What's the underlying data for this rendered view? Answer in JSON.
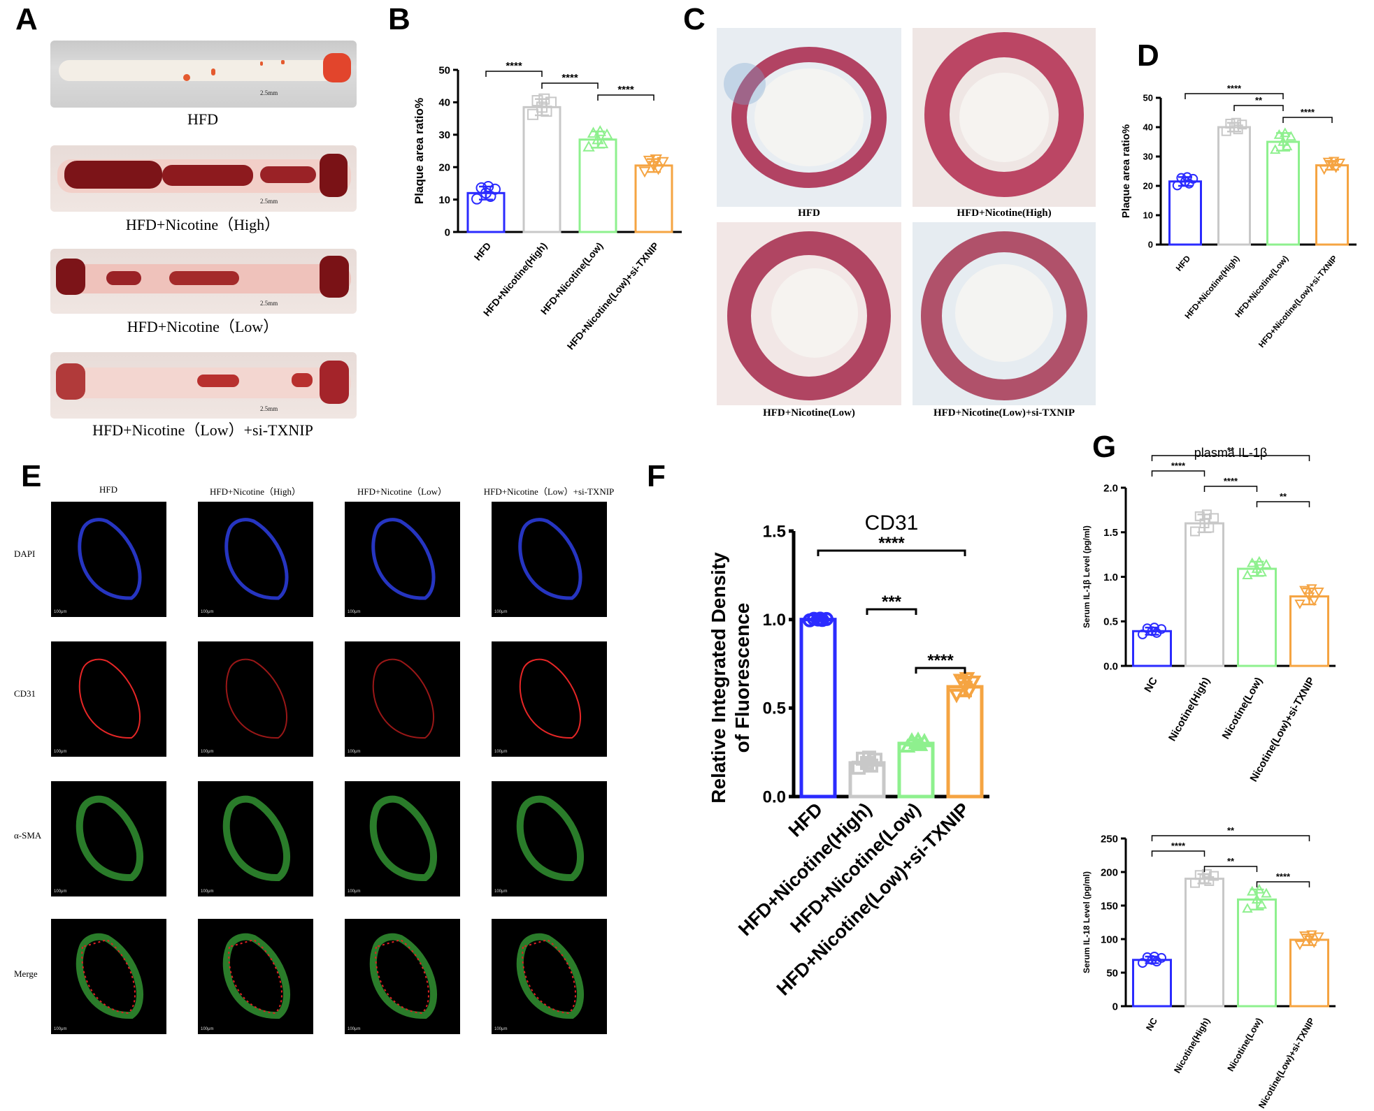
{
  "panel_letters": {
    "a": "A",
    "b": "B",
    "c": "C",
    "d": "D",
    "e": "E",
    "f": "F",
    "g": "G"
  },
  "panel_a": {
    "labels": [
      "HFD",
      "HFD+Nicotine（High）",
      "HFD+Nicotine（Low）",
      "HFD+Nicotine（Low）+si-TXNIP"
    ],
    "scale_bar": "2.5mm"
  },
  "panel_c": {
    "labels": [
      "HFD",
      "HFD+Nicotine(High)",
      "HFD+Nicotine(Low)",
      "HFD+Nicotine(Low)+si-TXNIP"
    ]
  },
  "panel_e": {
    "columns": [
      "HFD",
      "HFD+Nicotine（High）",
      "HFD+Nicotine（Low）",
      "HFD+Nicotine（Low）+si-TXNIP"
    ],
    "rows": [
      "DAPI",
      "CD31",
      "α-SMA",
      "Merge"
    ],
    "scale_bar": "100μm"
  },
  "chart_data": [
    {
      "id": "B",
      "type": "bar",
      "title": "",
      "ylabel": "Plaque area ratio%",
      "xlabel": "",
      "ylim": [
        0,
        50
      ],
      "yticks": [
        0,
        10,
        20,
        30,
        40,
        50
      ],
      "categories": [
        "HFD",
        "HFD+Nicotine(High)",
        "HFD+Nicotine(Low)",
        "HFD+Nicotine(Low)+si-TXNIP"
      ],
      "values": [
        12,
        38.5,
        28.5,
        20.5
      ],
      "errors": [
        2,
        2.5,
        2.5,
        2
      ],
      "colors": [
        "#2b2bff",
        "#c8c8c8",
        "#8ef08e",
        "#f5a442"
      ],
      "markers": [
        "circle",
        "square",
        "triangle-up",
        "triangle-down"
      ],
      "comparisons": [
        {
          "from": 0,
          "to": 1,
          "label": "****"
        },
        {
          "from": 1,
          "to": 2,
          "label": "****"
        },
        {
          "from": 2,
          "to": 3,
          "label": "****"
        }
      ]
    },
    {
      "id": "D",
      "type": "bar",
      "title": "",
      "ylabel": "Plaque area ratio%",
      "xlabel": "",
      "ylim": [
        0,
        50
      ],
      "yticks": [
        0,
        10,
        20,
        30,
        40,
        50
      ],
      "categories": [
        "HFD",
        "HFD+Nicotine(High)",
        "HFD+Nicotine(Low)",
        "HFD+Nicotine(Low)+si-TXNIP"
      ],
      "values": [
        21.5,
        40,
        35,
        27
      ],
      "errors": [
        1.5,
        1.5,
        3,
        1.5
      ],
      "colors": [
        "#2b2bff",
        "#c8c8c8",
        "#8ef08e",
        "#f5a442"
      ],
      "markers": [
        "circle",
        "square",
        "triangle-up",
        "triangle-down"
      ],
      "comparisons": [
        {
          "from": 0,
          "to": 2,
          "label": "****"
        },
        {
          "from": 1,
          "to": 2,
          "label": "**"
        },
        {
          "from": 2,
          "to": 3,
          "label": "****"
        }
      ]
    },
    {
      "id": "F",
      "type": "bar",
      "title": "CD31",
      "ylabel": "Relative Integrated Density of Fluorescence",
      "xlabel": "",
      "ylim": [
        0,
        1.5
      ],
      "yticks": [
        0.0,
        0.5,
        1.0,
        1.5
      ],
      "categories": [
        "HFD",
        "HFD+Nicotine(High)",
        "HFD+Nicotine(Low)",
        "HFD+Nicotine(Low)+si-TXNIP"
      ],
      "values": [
        1.0,
        0.19,
        0.3,
        0.62
      ],
      "errors": [
        0.005,
        0.03,
        0.02,
        0.05
      ],
      "colors": [
        "#2b2bff",
        "#c8c8c8",
        "#8ef08e",
        "#f5a442"
      ],
      "markers": [
        "circle",
        "square",
        "triangle-up",
        "triangle-down"
      ],
      "comparisons": [
        {
          "from": 0,
          "to": 3,
          "label": "****"
        },
        {
          "from": 1,
          "to": 2,
          "label": "***"
        },
        {
          "from": 2,
          "to": 3,
          "label": "****"
        }
      ]
    },
    {
      "id": "G1",
      "type": "bar",
      "title": "plasma IL-1β",
      "ylabel": "Serum IL-1β Level (pg/ml)",
      "xlabel": "",
      "ylim": [
        0,
        2.0
      ],
      "yticks": [
        0.0,
        0.5,
        1.0,
        1.5,
        2.0
      ],
      "categories": [
        "NC",
        "Nicotine(High)",
        "Nicotine(Low)",
        "Nicotine(Low)+si-TXNIP"
      ],
      "values": [
        0.39,
        1.6,
        1.09,
        0.78
      ],
      "errors": [
        0.04,
        0.1,
        0.08,
        0.09
      ],
      "colors": [
        "#2b2bff",
        "#c8c8c8",
        "#8ef08e",
        "#f5a442"
      ],
      "markers": [
        "circle",
        "square",
        "triangle-up",
        "triangle-down"
      ],
      "comparisons": [
        {
          "from": 0,
          "to": 3,
          "label": "**"
        },
        {
          "from": 0,
          "to": 1,
          "label": "****"
        },
        {
          "from": 1,
          "to": 2,
          "label": "****"
        },
        {
          "from": 2,
          "to": 3,
          "label": "**"
        }
      ]
    },
    {
      "id": "G2",
      "type": "bar",
      "title": "",
      "ylabel": "Serum IL-18 Level (pg/ml)",
      "xlabel": "",
      "ylim": [
        0,
        250
      ],
      "yticks": [
        0,
        50,
        100,
        150,
        200,
        250
      ],
      "categories": [
        "NC",
        "Nicotine(High)",
        "Nicotine(Low)",
        "Nicotine(Low)+si-TXNIP"
      ],
      "values": [
        69,
        190,
        159,
        99
      ],
      "errors": [
        5,
        7,
        15,
        8
      ],
      "colors": [
        "#2b2bff",
        "#c8c8c8",
        "#8ef08e",
        "#f5a442"
      ],
      "markers": [
        "circle",
        "square",
        "triangle-up",
        "triangle-down"
      ],
      "comparisons": [
        {
          "from": 0,
          "to": 3,
          "label": "**"
        },
        {
          "from": 0,
          "to": 1,
          "label": "****"
        },
        {
          "from": 1,
          "to": 2,
          "label": "**"
        },
        {
          "from": 2,
          "to": 3,
          "label": "****"
        }
      ]
    }
  ]
}
